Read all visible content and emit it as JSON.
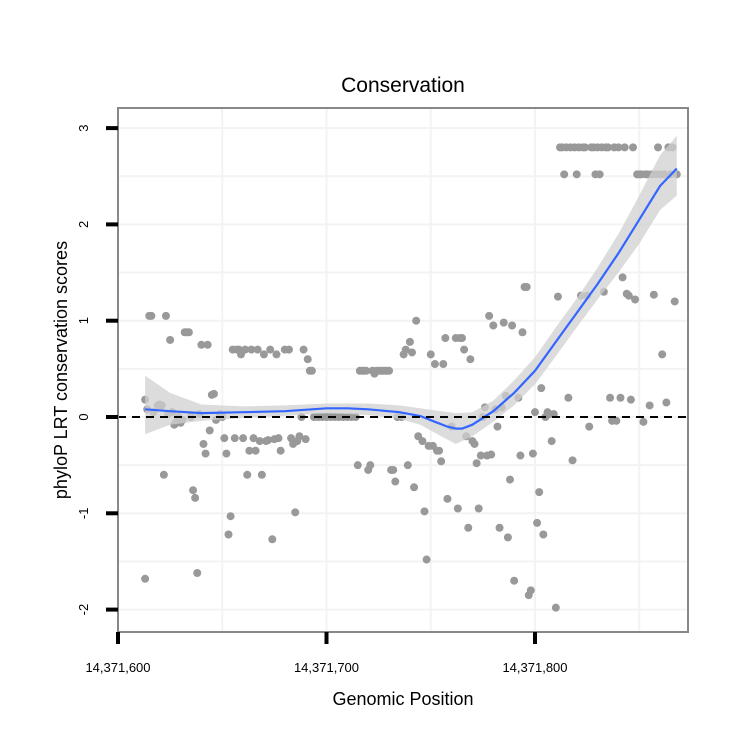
{
  "chart_data": {
    "type": "scatter",
    "title": "Conservation",
    "xlabel": "Genomic Position",
    "ylabel": "phyloP LRT conservation scores",
    "xlim": [
      14371592,
      14371868
    ],
    "ylim": [
      -2.2,
      3.2
    ],
    "x_ticks": [
      14371600,
      14371700,
      14371800
    ],
    "x_tick_labels": [
      "14,371,600",
      "14,371,700",
      "14,371,800"
    ],
    "y_ticks": [
      -2,
      -1,
      0,
      1,
      2,
      3
    ],
    "y_tick_labels": [
      "-2",
      "-1",
      "0",
      "1",
      "2",
      "3"
    ],
    "reference_line_y": 0,
    "grid": true,
    "colors": {
      "points": "#999999",
      "fit": "#3366ff",
      "band": "#d0d0d0",
      "panel_border": "#888888",
      "grid": "#f3f3f3"
    },
    "points": [
      [
        14371613,
        -1.68
      ],
      [
        14371613,
        0.18
      ],
      [
        14371614,
        0.08
      ],
      [
        14371615,
        1.05
      ],
      [
        14371616,
        1.05
      ],
      [
        14371617,
        0.05
      ],
      [
        14371619,
        0.12
      ],
      [
        14371620,
        0.13
      ],
      [
        14371621,
        0.12
      ],
      [
        14371622,
        -0.6
      ],
      [
        14371623,
        1.05
      ],
      [
        14371624,
        0.03
      ],
      [
        14371625,
        0.8
      ],
      [
        14371626,
        0.05
      ],
      [
        14371627,
        -0.08
      ],
      [
        14371628,
        -0.05
      ],
      [
        14371629,
        0.0
      ],
      [
        14371630,
        -0.06
      ],
      [
        14371631,
        -0.03
      ],
      [
        14371632,
        0.88
      ],
      [
        14371633,
        0.88
      ],
      [
        14371634,
        0.88
      ],
      [
        14371635,
        0.0
      ],
      [
        14371636,
        -0.76
      ],
      [
        14371637,
        -0.84
      ],
      [
        14371638,
        -1.62
      ],
      [
        14371639,
        0.03
      ],
      [
        14371640,
        0.75
      ],
      [
        14371641,
        -0.28
      ],
      [
        14371642,
        -0.38
      ],
      [
        14371643,
        0.75
      ],
      [
        14371644,
        -0.14
      ],
      [
        14371645,
        0.23
      ],
      [
        14371646,
        0.24
      ],
      [
        14371647,
        -0.03
      ],
      [
        14371649,
        0.03
      ],
      [
        14371650,
        0.0
      ],
      [
        14371651,
        -0.22
      ],
      [
        14371652,
        -0.38
      ],
      [
        14371653,
        -1.22
      ],
      [
        14371654,
        -1.03
      ],
      [
        14371655,
        0.7
      ],
      [
        14371656,
        -0.22
      ],
      [
        14371657,
        0.7
      ],
      [
        14371658,
        0.7
      ],
      [
        14371659,
        0.65
      ],
      [
        14371660,
        -0.22
      ],
      [
        14371661,
        0.7
      ],
      [
        14371662,
        -0.6
      ],
      [
        14371663,
        -0.35
      ],
      [
        14371664,
        0.7
      ],
      [
        14371665,
        -0.22
      ],
      [
        14371666,
        -0.35
      ],
      [
        14371667,
        0.7
      ],
      [
        14371668,
        -0.25
      ],
      [
        14371669,
        -0.6
      ],
      [
        14371670,
        0.65
      ],
      [
        14371671,
        -0.25
      ],
      [
        14371672,
        -0.24
      ],
      [
        14371673,
        0.7
      ],
      [
        14371674,
        -1.27
      ],
      [
        14371675,
        -0.23
      ],
      [
        14371676,
        0.65
      ],
      [
        14371677,
        -0.22
      ],
      [
        14371678,
        -0.35
      ],
      [
        14371680,
        0.7
      ],
      [
        14371682,
        0.7
      ],
      [
        14371683,
        -0.22
      ],
      [
        14371684,
        -0.28
      ],
      [
        14371685,
        -0.99
      ],
      [
        14371686,
        -0.25
      ],
      [
        14371687,
        -0.2
      ],
      [
        14371688,
        0.0
      ],
      [
        14371689,
        0.7
      ],
      [
        14371690,
        -0.23
      ],
      [
        14371691,
        0.6
      ],
      [
        14371692,
        0.48
      ],
      [
        14371693,
        0.48
      ],
      [
        14371694,
        0.0
      ],
      [
        14371696,
        0.0
      ],
      [
        14371698,
        0.0
      ],
      [
        14371700,
        0.0
      ],
      [
        14371702,
        0.0
      ],
      [
        14371704,
        0.0
      ],
      [
        14371706,
        0.0
      ],
      [
        14371708,
        0.0
      ],
      [
        14371710,
        0.0
      ],
      [
        14371712,
        0.0
      ],
      [
        14371714,
        0.0
      ],
      [
        14371715,
        -0.5
      ],
      [
        14371716,
        0.48
      ],
      [
        14371717,
        0.48
      ],
      [
        14371718,
        0.48
      ],
      [
        14371719,
        0.48
      ],
      [
        14371720,
        -0.55
      ],
      [
        14371721,
        -0.5
      ],
      [
        14371722,
        0.48
      ],
      [
        14371723,
        0.45
      ],
      [
        14371724,
        0.48
      ],
      [
        14371725,
        0.48
      ],
      [
        14371726,
        0.48
      ],
      [
        14371727,
        0.48
      ],
      [
        14371728,
        0.48
      ],
      [
        14371729,
        0.48
      ],
      [
        14371730,
        0.48
      ],
      [
        14371731,
        -0.55
      ],
      [
        14371732,
        -0.55
      ],
      [
        14371733,
        -0.67
      ],
      [
        14371734,
        0.0
      ],
      [
        14371736,
        0.0
      ],
      [
        14371737,
        0.65
      ],
      [
        14371738,
        0.7
      ],
      [
        14371739,
        -0.5
      ],
      [
        14371740,
        0.78
      ],
      [
        14371741,
        0.67
      ],
      [
        14371742,
        -0.73
      ],
      [
        14371743,
        1.0
      ],
      [
        14371744,
        -0.2
      ],
      [
        14371746,
        -0.25
      ],
      [
        14371747,
        -0.98
      ],
      [
        14371748,
        -1.48
      ],
      [
        14371749,
        -0.3
      ],
      [
        14371750,
        0.65
      ],
      [
        14371751,
        -0.3
      ],
      [
        14371752,
        0.55
      ],
      [
        14371753,
        -0.35
      ],
      [
        14371754,
        -0.35
      ],
      [
        14371755,
        -0.46
      ],
      [
        14371756,
        0.55
      ],
      [
        14371757,
        0.82
      ],
      [
        14371758,
        -0.85
      ],
      [
        14371760,
        -0.1
      ],
      [
        14371762,
        0.82
      ],
      [
        14371763,
        -0.95
      ],
      [
        14371764,
        0.82
      ],
      [
        14371765,
        0.82
      ],
      [
        14371766,
        0.7
      ],
      [
        14371767,
        -0.2
      ],
      [
        14371768,
        -1.15
      ],
      [
        14371769,
        0.6
      ],
      [
        14371770,
        -0.25
      ],
      [
        14371771,
        -0.28
      ],
      [
        14371772,
        -0.48
      ],
      [
        14371773,
        -0.95
      ],
      [
        14371774,
        -0.4
      ],
      [
        14371775,
        0.0
      ],
      [
        14371776,
        0.1
      ],
      [
        14371777,
        -0.4
      ],
      [
        14371778,
        1.05
      ],
      [
        14371779,
        -0.39
      ],
      [
        14371780,
        0.95
      ],
      [
        14371781,
        0.08
      ],
      [
        14371782,
        -0.1
      ],
      [
        14371783,
        -1.15
      ],
      [
        14371784,
        0.1
      ],
      [
        14371785,
        0.98
      ],
      [
        14371786,
        0.22
      ],
      [
        14371787,
        -1.25
      ],
      [
        14371788,
        -0.65
      ],
      [
        14371789,
        0.95
      ],
      [
        14371790,
        -1.7
      ],
      [
        14371792,
        0.2
      ],
      [
        14371793,
        -0.4
      ],
      [
        14371794,
        0.88
      ],
      [
        14371795,
        1.35
      ],
      [
        14371796,
        1.35
      ],
      [
        14371797,
        -1.85
      ],
      [
        14371798,
        -1.8
      ],
      [
        14371799,
        -0.38
      ],
      [
        14371800,
        0.05
      ],
      [
        14371801,
        -1.1
      ],
      [
        14371802,
        -0.78
      ],
      [
        14371803,
        0.3
      ],
      [
        14371804,
        -1.22
      ],
      [
        14371805,
        0.0
      ],
      [
        14371806,
        0.05
      ],
      [
        14371807,
        0.03
      ],
      [
        14371808,
        -0.25
      ],
      [
        14371809,
        0.03
      ],
      [
        14371810,
        -1.98
      ],
      [
        14371811,
        1.25
      ],
      [
        14371812,
        2.8
      ],
      [
        14371813,
        2.8
      ],
      [
        14371814,
        2.52
      ],
      [
        14371815,
        2.8
      ],
      [
        14371816,
        0.2
      ],
      [
        14371817,
        2.8
      ],
      [
        14371818,
        -0.45
      ],
      [
        14371819,
        2.8
      ],
      [
        14371820,
        2.52
      ],
      [
        14371821,
        2.8
      ],
      [
        14371822,
        1.26
      ],
      [
        14371823,
        2.8
      ],
      [
        14371824,
        2.8
      ],
      [
        14371825,
        1.26
      ],
      [
        14371826,
        -0.1
      ],
      [
        14371827,
        2.8
      ],
      [
        14371828,
        2.8
      ],
      [
        14371829,
        2.52
      ],
      [
        14371830,
        2.8
      ],
      [
        14371831,
        2.52
      ],
      [
        14371832,
        2.8
      ],
      [
        14371833,
        1.3
      ],
      [
        14371834,
        2.8
      ],
      [
        14371835,
        2.8
      ],
      [
        14371836,
        0.2
      ],
      [
        14371837,
        -0.04
      ],
      [
        14371838,
        2.8
      ],
      [
        14371839,
        -0.04
      ],
      [
        14371840,
        2.8
      ],
      [
        14371841,
        0.2
      ],
      [
        14371842,
        1.45
      ],
      [
        14371843,
        2.8
      ],
      [
        14371844,
        1.28
      ],
      [
        14371845,
        1.26
      ],
      [
        14371846,
        0.18
      ],
      [
        14371847,
        2.8
      ],
      [
        14371848,
        1.22
      ],
      [
        14371849,
        2.52
      ],
      [
        14371850,
        2.52
      ],
      [
        14371851,
        2.52
      ],
      [
        14371852,
        -0.05
      ],
      [
        14371853,
        2.52
      ],
      [
        14371854,
        2.52
      ],
      [
        14371855,
        0.12
      ],
      [
        14371856,
        2.52
      ],
      [
        14371857,
        1.27
      ],
      [
        14371858,
        2.52
      ],
      [
        14371859,
        2.8
      ],
      [
        14371860,
        2.52
      ],
      [
        14371861,
        0.65
      ],
      [
        14371862,
        2.52
      ],
      [
        14371863,
        0.15
      ],
      [
        14371864,
        2.8
      ],
      [
        14371865,
        2.52
      ],
      [
        14371866,
        2.8
      ],
      [
        14371867,
        1.2
      ],
      [
        14371868,
        2.52
      ]
    ],
    "fit": [
      [
        14371613,
        0.08
      ],
      [
        14371625,
        0.06
      ],
      [
        14371640,
        0.04
      ],
      [
        14371660,
        0.05
      ],
      [
        14371680,
        0.06
      ],
      [
        14371700,
        0.09
      ],
      [
        14371710,
        0.09
      ],
      [
        14371720,
        0.08
      ],
      [
        14371735,
        0.05
      ],
      [
        14371745,
        0.01
      ],
      [
        14371752,
        -0.05
      ],
      [
        14371758,
        -0.1
      ],
      [
        14371762,
        -0.12
      ],
      [
        14371765,
        -0.12
      ],
      [
        14371770,
        -0.08
      ],
      [
        14371780,
        0.06
      ],
      [
        14371790,
        0.25
      ],
      [
        14371800,
        0.48
      ],
      [
        14371810,
        0.78
      ],
      [
        14371820,
        1.08
      ],
      [
        14371830,
        1.38
      ],
      [
        14371840,
        1.7
      ],
      [
        14371850,
        2.05
      ],
      [
        14371860,
        2.4
      ],
      [
        14371868,
        2.58
      ]
    ],
    "band": [
      [
        14371613,
        -0.18,
        0.43
      ],
      [
        14371625,
        -0.08,
        0.25
      ],
      [
        14371640,
        -0.04,
        0.13
      ],
      [
        14371660,
        -0.01,
        0.11
      ],
      [
        14371680,
        0.01,
        0.12
      ],
      [
        14371700,
        0.04,
        0.14
      ],
      [
        14371720,
        0.02,
        0.14
      ],
      [
        14371735,
        -0.02,
        0.12
      ],
      [
        14371745,
        -0.08,
        0.09
      ],
      [
        14371755,
        -0.2,
        0.06
      ],
      [
        14371762,
        -0.28,
        0.04
      ],
      [
        14371770,
        -0.2,
        0.05
      ],
      [
        14371780,
        -0.05,
        0.17
      ],
      [
        14371790,
        0.12,
        0.38
      ],
      [
        14371800,
        0.34,
        0.62
      ],
      [
        14371810,
        0.63,
        0.93
      ],
      [
        14371820,
        0.93,
        1.23
      ],
      [
        14371830,
        1.22,
        1.55
      ],
      [
        14371840,
        1.5,
        1.9
      ],
      [
        14371850,
        1.8,
        2.3
      ],
      [
        14371860,
        2.15,
        2.72
      ],
      [
        14371868,
        2.3,
        2.92
      ]
    ]
  }
}
